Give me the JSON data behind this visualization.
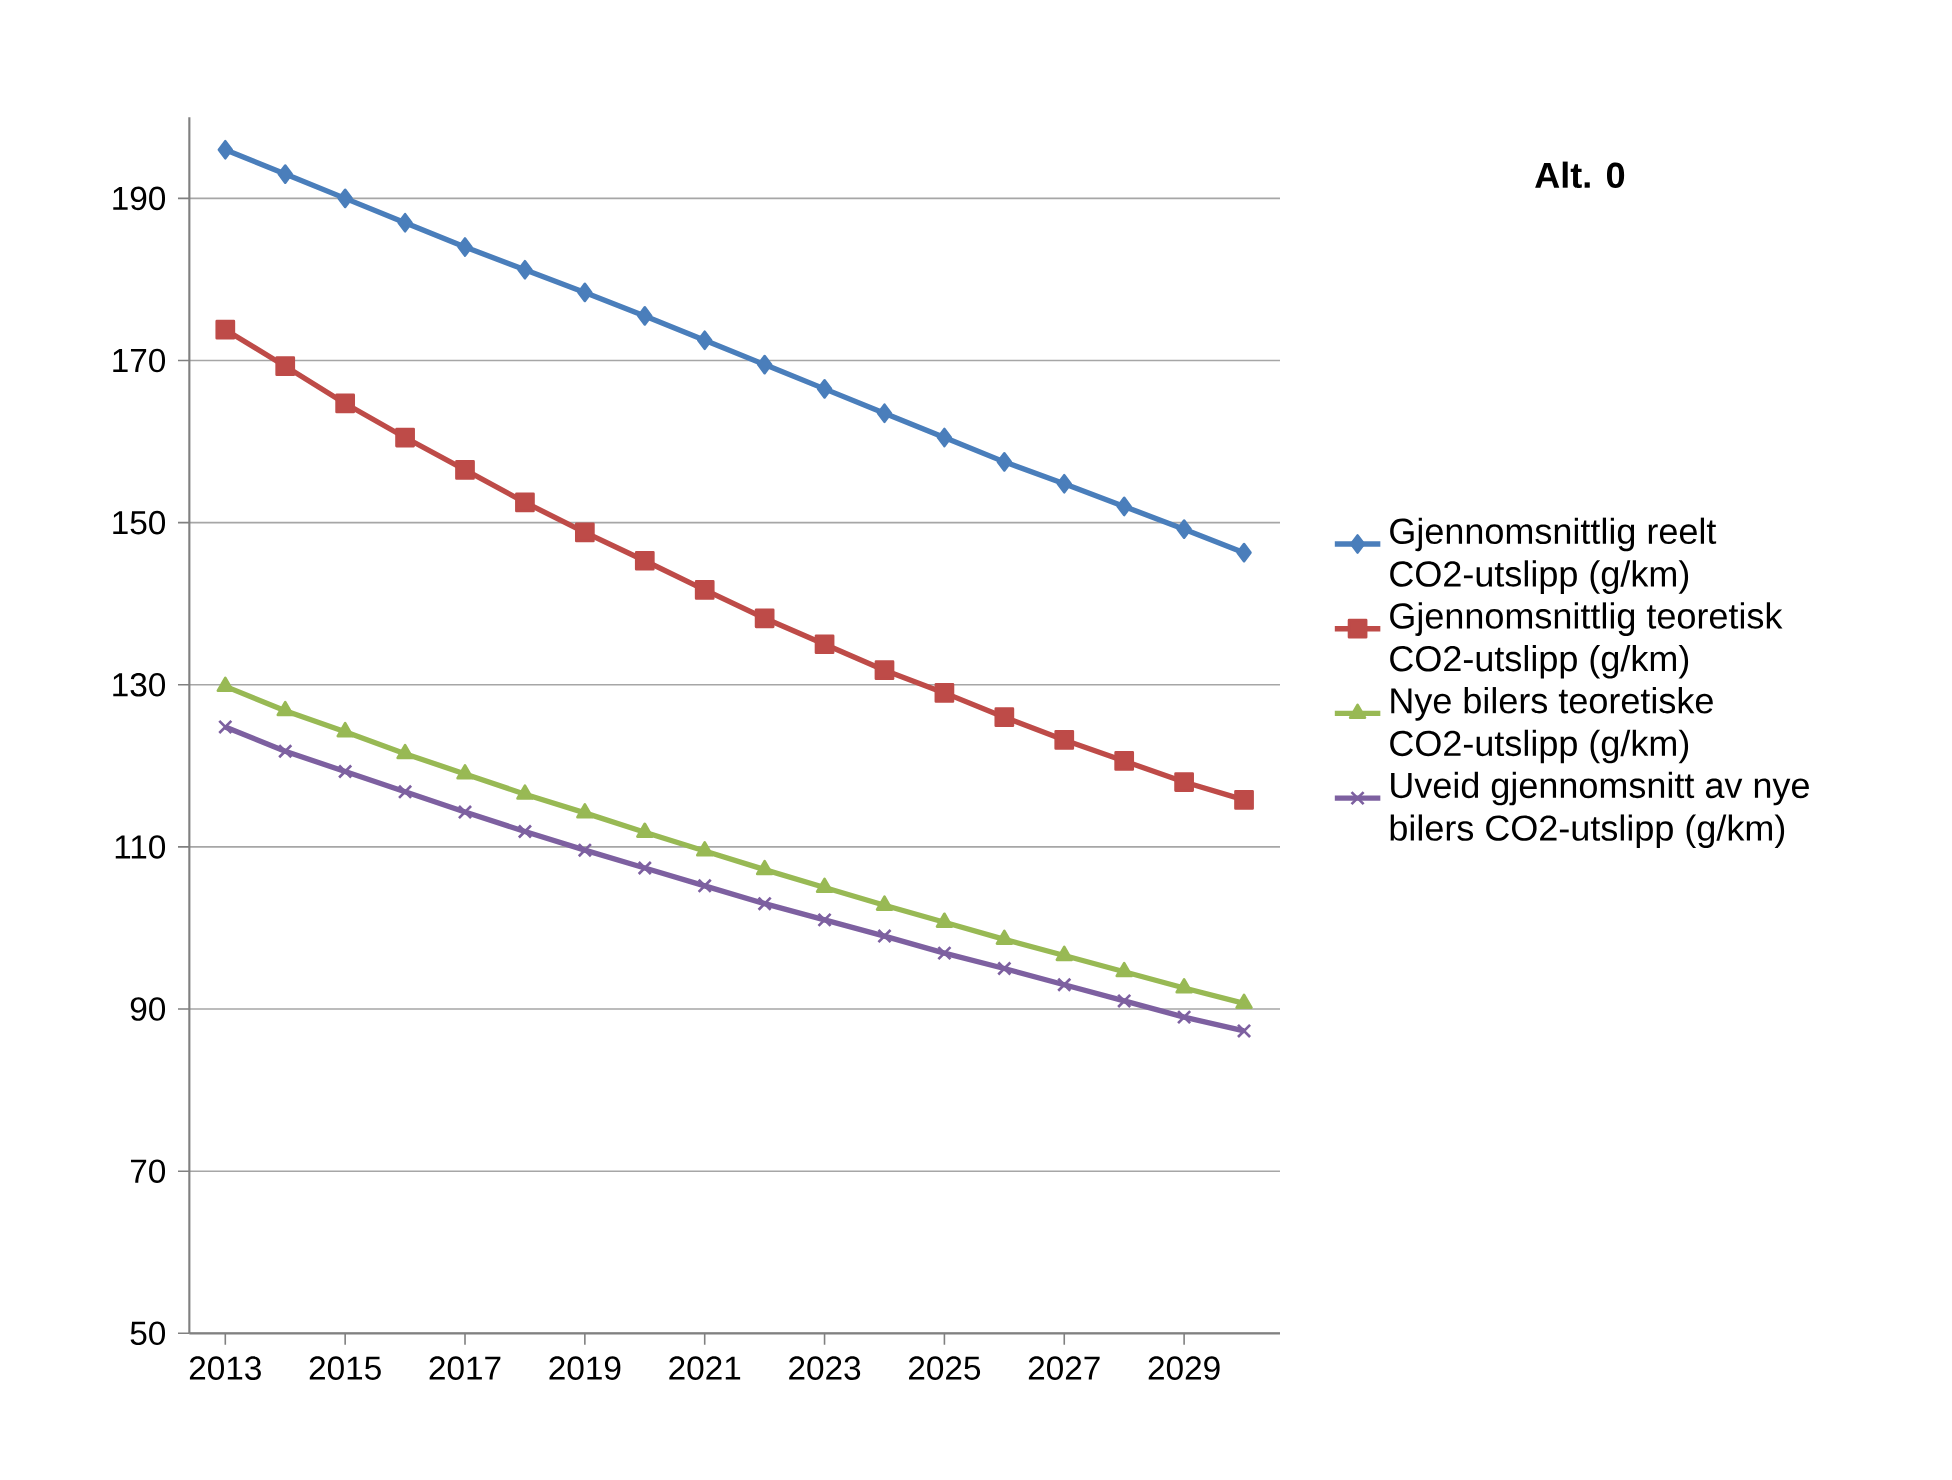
{
  "chart_data": {
    "type": "line",
    "title": "Alt. 0",
    "x": [
      2013,
      2014,
      2015,
      2016,
      2017,
      2018,
      2019,
      2020,
      2021,
      2022,
      2023,
      2024,
      2025,
      2026,
      2027,
      2028,
      2029,
      2030
    ],
    "xlim": [
      2012.4,
      2030.6
    ],
    "xticks": [
      2013,
      2015,
      2017,
      2019,
      2021,
      2023,
      2025,
      2027,
      2029
    ],
    "ylim": [
      50,
      200
    ],
    "yticks": [
      50,
      70,
      90,
      110,
      130,
      150,
      170,
      190
    ],
    "grid": "y",
    "legend": "right",
    "line_style": "solid",
    "series": [
      {
        "name": "Gjennomsnittlig reelt CO2-utslipp (g/km)",
        "color": "#4a7ebb",
        "marker": "diamond",
        "values": [
          196,
          193,
          190,
          187,
          184,
          181.2,
          178.4,
          175.5,
          172.5,
          169.5,
          166.5,
          163.5,
          160.5,
          157.5,
          154.8,
          152,
          149.2,
          146.3
        ]
      },
      {
        "name": "Gjennomsnittlig teoretisk CO2-utslipp (g/km)",
        "color": "#be4b48",
        "marker": "square",
        "values": [
          173.8,
          169.3,
          164.7,
          160.5,
          156.5,
          152.5,
          148.8,
          145.3,
          141.7,
          138.2,
          135,
          131.8,
          129,
          126,
          123.2,
          120.6,
          118,
          115.8
        ]
      },
      {
        "name": "Nye bilers teoretiske CO2-utslipp (g/km)",
        "color": "#98b954",
        "marker": "triangle",
        "values": [
          129.8,
          126.8,
          124.2,
          121.5,
          119,
          116.5,
          114.2,
          111.8,
          109.5,
          107.2,
          105,
          102.8,
          100.7,
          98.6,
          96.6,
          94.6,
          92.6,
          90.7
        ]
      },
      {
        "name": "Uveid gjennomsnitt av nye bilers CO2-utslipp (g/km)",
        "color": "#7d60a0",
        "marker": "cross",
        "values": [
          124.8,
          121.8,
          119.3,
          116.8,
          114.3,
          111.9,
          109.6,
          107.4,
          105.2,
          103,
          101,
          99,
          96.9,
          95,
          93,
          91,
          89,
          87.3
        ]
      }
    ]
  }
}
